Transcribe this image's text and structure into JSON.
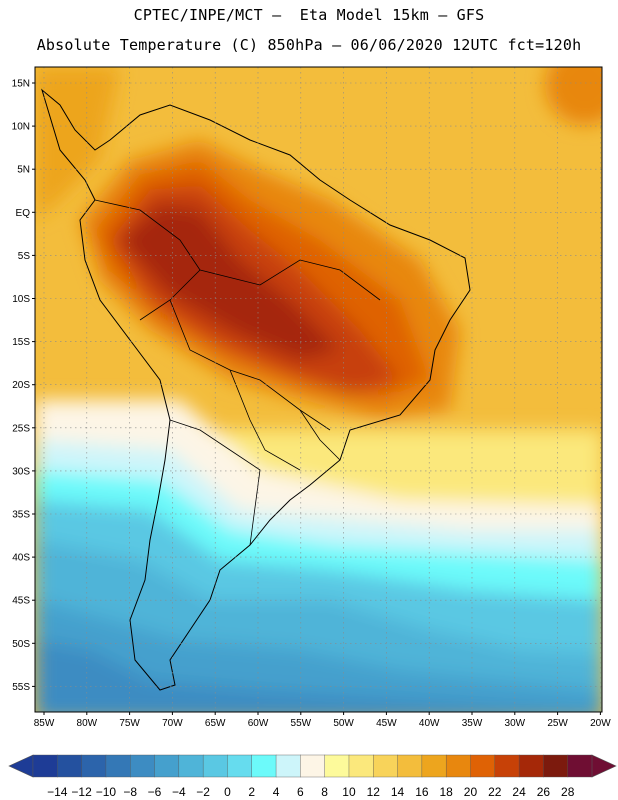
{
  "header": {
    "title_line1": "CPTEC/INPE/MCT –  Eta Model 15km – GFS",
    "title_line2": "Absolute Temperature (C) 850hPa – 06/06/2020 12UTC fct=120h"
  },
  "map": {
    "lat_labels": [
      "15N",
      "10N",
      "5N",
      "EQ",
      "5S",
      "10S",
      "15S",
      "20S",
      "25S",
      "30S",
      "35S",
      "40S",
      "45S",
      "50S",
      "55S"
    ],
    "lon_labels": [
      "85W",
      "80W",
      "75W",
      "70W",
      "65W",
      "60W",
      "55W",
      "50W",
      "45W",
      "40W",
      "35W",
      "30W",
      "25W",
      "20W"
    ],
    "grid": "dotted"
  },
  "colorbar": {
    "labels": [
      "-14",
      "-12",
      "-10",
      "-8",
      "-6",
      "-4",
      "-2",
      "0",
      "2",
      "4",
      "6",
      "8",
      "10",
      "12",
      "14",
      "16",
      "18",
      "20",
      "22",
      "24",
      "26",
      "28"
    ],
    "colors": [
      "#1e3c96",
      "#24519f",
      "#2c64ab",
      "#3478b6",
      "#3d8cc2",
      "#45a0cd",
      "#4fb4d8",
      "#5ac8e3",
      "#66dcee",
      "#6cfafa",
      "#cdf5fa",
      "#fdf5e6",
      "#fdfa9b",
      "#fbe87c",
      "#f8d35a",
      "#f3bd3c",
      "#eda51e",
      "#e8870e",
      "#df6205",
      "#c74107",
      "#a52808",
      "#7c1a0d",
      "#6f0e33"
    ]
  }
}
